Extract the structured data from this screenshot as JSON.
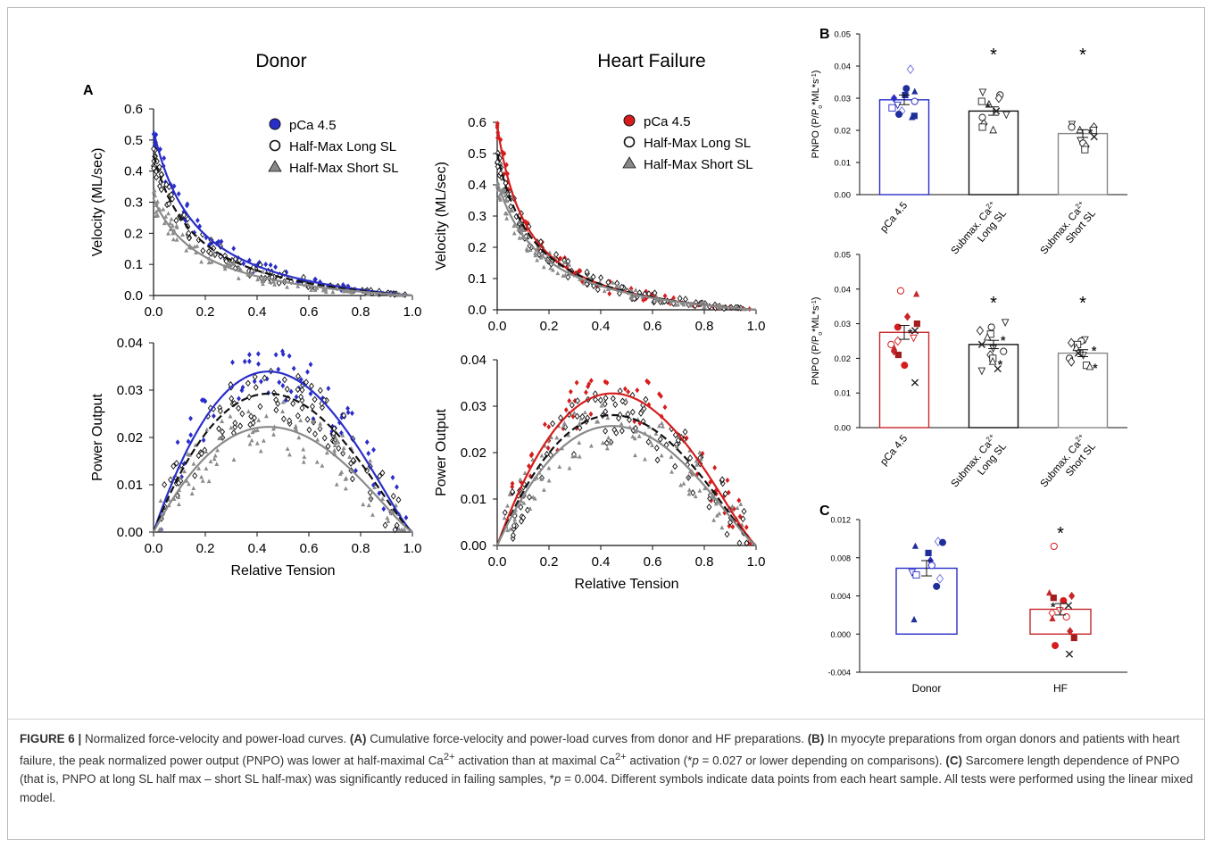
{
  "panel_labels": {
    "a": "A",
    "b": "B",
    "c": "C"
  },
  "colors": {
    "donor": "#2a2ec8",
    "hf": "#d61c1c",
    "long": "#111111",
    "short": "#8a8a8a",
    "bar_b_donor": "#2a2ec8",
    "bar_b_hf": "#c8262b"
  },
  "panel_a": {
    "donor_title": "Donor",
    "hf_title": "Heart Failure",
    "legend": [
      {
        "marker": "filled-circle",
        "label": "pCa 4.5"
      },
      {
        "marker": "open-circle",
        "label": "Half-Max Long SL"
      },
      {
        "marker": "triangle",
        "label": "Half-Max Short SL"
      }
    ],
    "velocity_ylabel": "Velocity (ML/sec)",
    "power_ylabel": "Power Output",
    "xlabel": "Relative Tension"
  },
  "panel_b": {
    "ylabel_top_html": "PNPO (P/P<tspan baseline-shift=\"sub\" font-size=\"7\">o</tspan>*ML*s<tspan baseline-shift=\"super\" font-size=\"7\">-1</tspan>)",
    "ylabel_bottom_html": "PNPO (P/P<tspan baseline-shift=\"sub\" font-size=\"7\">o</tspan>*ML*s<tspan baseline-shift=\"super\" font-size=\"7\">-1</tspan>)",
    "categories": [
      "pCa 4.5",
      "Submax. Ca2+ Long SL",
      "Submax. Ca2+ Short SL"
    ],
    "star": "*"
  },
  "panel_c": {
    "categories": [
      "Donor",
      "HF"
    ],
    "star": "*"
  },
  "caption": {
    "label": "FIGURE 6 |",
    "title": " Normalized force-velocity and power-load curves. ",
    "a_label": "(A)",
    "a_text": " Cumulative force-velocity and power-load curves from donor and HF preparations. ",
    "b_label": "(B)",
    "b_text": " In myocyte preparations from organ donors and patients with heart failure, the peak normalized power output (PNPO) was lower at half-maximal Ca",
    "sup1": "2+",
    "b_text2": " activation than at maximal Ca",
    "sup2": "2+",
    "b_text3": " activation (*",
    "p1": "p",
    "b_text4": " = 0.027 or lower depending on comparisons). ",
    "c_label": "(C)",
    "c_text": " Sarcomere length dependence of PNPO (that is, PNPO at long SL half max – short SL half-max) was significantly reduced in failing samples, *",
    "p2": "p",
    "c_text2": " = 0.004. Different symbols indicate data points from each heart sample. All tests were performed using the linear mixed model."
  },
  "chart_data": [
    {
      "id": "A-donor-velocity",
      "type": "scatter",
      "title": "Donor",
      "xlabel": "",
      "ylabel": "Velocity (ML/sec)",
      "xlim": [
        0,
        1.0
      ],
      "ylim": [
        0,
        0.6
      ],
      "xticks": [
        "0.0",
        "0.2",
        "0.4",
        "0.6",
        "0.8",
        "1.0"
      ],
      "yticks": [
        "0.0",
        "0.1",
        "0.2",
        "0.3",
        "0.4",
        "0.5",
        "0.6"
      ],
      "legend_position": "top-right",
      "series": [
        {
          "name": "pCa 4.5",
          "v0": 0.53,
          "a": 0.17
        },
        {
          "name": "Half-Max Long SL",
          "v0": 0.45,
          "a": 0.17
        },
        {
          "name": "Half-Max Short SL",
          "v0": 0.31,
          "a": 0.2
        }
      ]
    },
    {
      "id": "A-donor-power",
      "type": "scatter",
      "title": "",
      "xlabel": "Relative Tension",
      "ylabel": "Power Output",
      "xlim": [
        0,
        1.0
      ],
      "ylim": [
        0,
        0.04
      ],
      "xticks": [
        "0.0",
        "0.2",
        "0.4",
        "0.6",
        "0.8",
        "1.0"
      ],
      "yticks": [
        "0.00",
        "0.01",
        "0.02",
        "0.03",
        "0.04"
      ],
      "series": [
        {
          "name": "pCa 4.5",
          "peak": 0.029
        },
        {
          "name": "Half-Max Long SL",
          "peak": 0.025
        },
        {
          "name": "Half-Max Short SL",
          "peak": 0.019
        }
      ]
    },
    {
      "id": "A-hf-velocity",
      "type": "scatter",
      "title": "Heart Failure",
      "xlabel": "",
      "ylabel": "Velocity (ML/sec)",
      "xlim": [
        0,
        1.0
      ],
      "ylim": [
        0,
        0.6
      ],
      "xticks": [
        "0.0",
        "0.2",
        "0.4",
        "0.6",
        "0.8",
        "1.0"
      ],
      "yticks": [
        "0.0",
        "0.1",
        "0.2",
        "0.3",
        "0.4",
        "0.5",
        "0.6"
      ],
      "legend_position": "top-right",
      "series": [
        {
          "name": "pCa 4.5",
          "v0": 0.59,
          "a": 0.12
        },
        {
          "name": "Half-Max Long SL",
          "v0": 0.5,
          "a": 0.15
        },
        {
          "name": "Half-Max Short SL",
          "v0": 0.41,
          "a": 0.18
        }
      ]
    },
    {
      "id": "A-hf-power",
      "type": "scatter",
      "title": "",
      "xlabel": "Relative Tension",
      "ylabel": "Power Output",
      "xlim": [
        0,
        1.0
      ],
      "ylim": [
        0,
        0.04
      ],
      "xticks": [
        "0.0",
        "0.2",
        "0.4",
        "0.6",
        "0.8",
        "1.0"
      ],
      "yticks": [
        "0.00",
        "0.01",
        "0.02",
        "0.03",
        "0.04"
      ],
      "series": [
        {
          "name": "pCa 4.5",
          "peak": 0.028
        },
        {
          "name": "Half-Max Long SL",
          "peak": 0.024
        },
        {
          "name": "Half-Max Short SL",
          "peak": 0.022
        }
      ]
    },
    {
      "id": "B-donor",
      "type": "bar",
      "ylabel": "PNPO (P/Po*ML*s-1)",
      "ylim": [
        0,
        0.05
      ],
      "yticks": [
        "0.00",
        "0.01",
        "0.02",
        "0.03",
        "0.04",
        "0.05"
      ],
      "categories": [
        "pCa 4.5",
        "Submax. Ca2+ Long SL",
        "Submax. Ca2+ Short SL"
      ],
      "values": [
        0.0295,
        0.026,
        0.019
      ],
      "errors": [
        0.0015,
        0.0013,
        0.0012
      ],
      "significant": [
        false,
        true,
        true
      ],
      "points": [
        [
          0.039,
          0.033,
          0.032,
          0.031,
          0.03,
          0.029,
          0.028,
          0.027,
          0.026,
          0.025,
          0.024,
          0.0245
        ],
        [
          0.032,
          0.031,
          0.03,
          0.029,
          0.028,
          0.027,
          0.026,
          0.025,
          0.024,
          0.022,
          0.021,
          0.02
        ],
        [
          0.022,
          0.021,
          0.021,
          0.02,
          0.02,
          0.019,
          0.018,
          0.017,
          0.016,
          0.015,
          0.014
        ]
      ]
    },
    {
      "id": "B-hf",
      "type": "bar",
      "ylabel": "PNPO (P/Po*ML*s-1)",
      "ylim": [
        0,
        0.05
      ],
      "yticks": [
        "0.00",
        "0.01",
        "0.02",
        "0.03",
        "0.04",
        "0.05"
      ],
      "categories": [
        "pCa 4.5",
        "Submax. Ca2+ Long SL",
        "Submax. Ca2+ Short SL"
      ],
      "values": [
        0.0275,
        0.024,
        0.0215
      ],
      "errors": [
        0.002,
        0.0012,
        0.001
      ],
      "significant": [
        false,
        true,
        true
      ],
      "points": [
        [
          0.0395,
          0.0385,
          0.032,
          0.03,
          0.029,
          0.028,
          0.027,
          0.026,
          0.025,
          0.024,
          0.023,
          0.022,
          0.021,
          0.018,
          0.013
        ],
        [
          0.0305,
          0.029,
          0.028,
          0.027,
          0.026,
          0.025,
          0.024,
          0.023,
          0.022,
          0.021,
          0.02,
          0.019,
          0.018,
          0.017,
          0.0165
        ],
        [
          0.0255,
          0.025,
          0.0245,
          0.024,
          0.023,
          0.022,
          0.0215,
          0.021,
          0.02,
          0.019,
          0.018,
          0.0175,
          0.017
        ]
      ]
    },
    {
      "id": "C",
      "type": "bar",
      "ylabel": "",
      "ylim": [
        -0.004,
        0.012
      ],
      "yticks": [
        "-0.004",
        "0.000",
        "0.004",
        "0.008",
        "0.012"
      ],
      "categories": [
        "Donor",
        "HF"
      ],
      "values": [
        0.0069,
        0.0026
      ],
      "errors": [
        0.0008,
        0.0006
      ],
      "significant": [
        false,
        true
      ],
      "points": [
        [
          0.0097,
          0.0096,
          0.0092,
          0.0085,
          0.0077,
          0.0072,
          0.0065,
          0.0062,
          0.0058,
          0.005,
          0.0015
        ],
        [
          0.0092,
          0.0043,
          0.004,
          0.0038,
          0.0035,
          0.003,
          0.0028,
          0.0025,
          0.0022,
          0.0018,
          0.0016,
          0.0003,
          -0.0004,
          -0.0012,
          -0.0021
        ]
      ]
    }
  ]
}
